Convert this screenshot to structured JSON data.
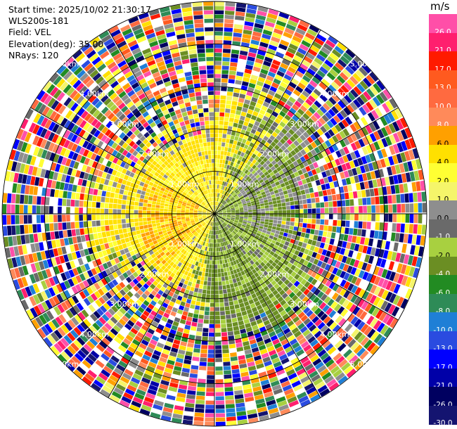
{
  "header": {
    "start_time": "Start time: 2025/10/02 21:30:17",
    "instrument": "WLS200s-181",
    "field": "Field: VEL",
    "elevation": "Elevation(deg): 35.00",
    "nrays": "NRays: 120"
  },
  "colorbar": {
    "unit": "m/s",
    "segments": [
      {
        "label": "26.0",
        "color": "#ff4fa8"
      },
      {
        "label": "21.0",
        "color": "#ff1f6e"
      },
      {
        "label": "17.0",
        "color": "#ff1a00"
      },
      {
        "label": "13.0",
        "color": "#ff5a1f"
      },
      {
        "label": "10.0",
        "color": "#ff6a40"
      },
      {
        "label": "8.0",
        "color": "#ff8a5a"
      },
      {
        "label": "6.0",
        "color": "#ffa000"
      },
      {
        "label": "4.0",
        "color": "#ffe000"
      },
      {
        "label": "2.0",
        "color": "#ffff33"
      },
      {
        "label": "1.0",
        "color": "#f5f56a"
      },
      {
        "label": "0.0",
        "color": "#8e8e8e"
      },
      {
        "label": "-1.0",
        "color": "#6a6a6a"
      },
      {
        "label": "-2.0",
        "color": "#a8d040"
      },
      {
        "label": "-4.0",
        "color": "#6b8e23"
      },
      {
        "label": "-6.0",
        "color": "#228b22"
      },
      {
        "label": "-8.0",
        "color": "#2e8b57"
      },
      {
        "label": "-10.0",
        "color": "#1f7fd6"
      },
      {
        "label": "-13.0",
        "color": "#2a4be0"
      },
      {
        "label": "-17.0",
        "color": "#0000ff"
      },
      {
        "label": "-21.0",
        "color": "#0000a8"
      },
      {
        "label": "-26.0",
        "color": "#000060"
      },
      {
        "label": "-30.0",
        "color": "#141470"
      }
    ]
  },
  "chart_data": {
    "type": "heatmap",
    "projection": "polar",
    "field": "VEL",
    "units": "m/s",
    "elevation_deg": 35.0,
    "n_rays": 120,
    "range_rings_km": [
      1.0,
      2.0,
      3.0,
      4.0,
      5.0
    ],
    "ring_labels": [
      "1.00km",
      "2.00km",
      "3.00km",
      "4.00km",
      "5.00km"
    ],
    "max_range_km": 5.0,
    "value_range": [
      -30,
      30
    ],
    "pattern": {
      "north_west_near_field": "yellow (+1 to +6 m/s, towards orange)",
      "south_east_near_field": "green (-1 to -6 m/s)",
      "far_field": "noisy all-color returns beyond ~2.5 km"
    }
  }
}
